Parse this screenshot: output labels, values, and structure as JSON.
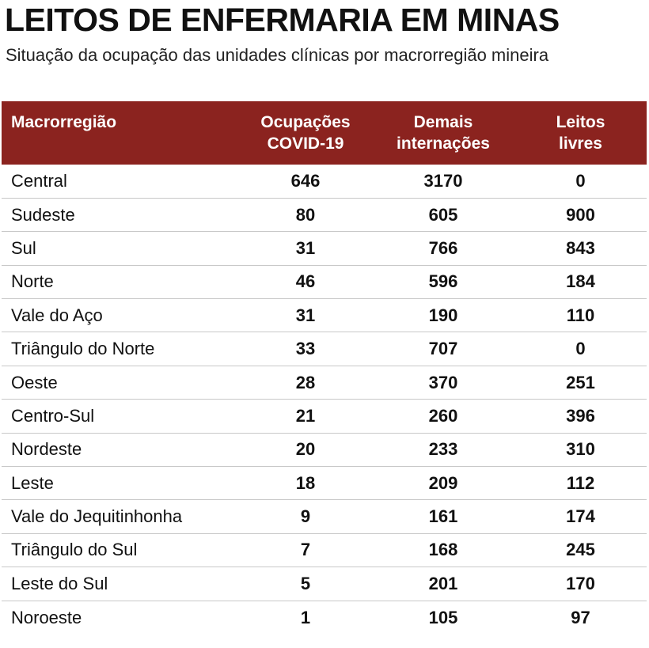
{
  "chart_data": {
    "type": "table",
    "title": "LEITOS DE ENFERMARIA EM MINAS",
    "subtitle": "Situação da ocupação das unidades clínicas por macrorregião mineira",
    "header_color": "#8b231f",
    "columns": [
      {
        "line1": "Macrorregião",
        "line2": ""
      },
      {
        "line1": "Ocupações",
        "line2": "COVID-19"
      },
      {
        "line1": "Demais",
        "line2": "internações"
      },
      {
        "line1": "Leitos",
        "line2": "livres"
      }
    ],
    "rows": [
      {
        "region": "Central",
        "covid": 646,
        "demais": 3170,
        "livres": 0
      },
      {
        "region": "Sudeste",
        "covid": 80,
        "demais": 605,
        "livres": 900
      },
      {
        "region": "Sul",
        "covid": 31,
        "demais": 766,
        "livres": 843
      },
      {
        "region": "Norte",
        "covid": 46,
        "demais": 596,
        "livres": 184
      },
      {
        "region": "Vale do Aço",
        "covid": 31,
        "demais": 190,
        "livres": 110
      },
      {
        "region": "Triângulo do Norte",
        "covid": 33,
        "demais": 707,
        "livres": 0
      },
      {
        "region": "Oeste",
        "covid": 28,
        "demais": 370,
        "livres": 251
      },
      {
        "region": "Centro-Sul",
        "covid": 21,
        "demais": 260,
        "livres": 396
      },
      {
        "region": "Nordeste",
        "covid": 20,
        "demais": 233,
        "livres": 310
      },
      {
        "region": "Leste",
        "covid": 18,
        "demais": 209,
        "livres": 112
      },
      {
        "region": "Vale do Jequitinhonha",
        "covid": 9,
        "demais": 161,
        "livres": 174
      },
      {
        "region": "Triângulo do Sul",
        "covid": 7,
        "demais": 168,
        "livres": 245
      },
      {
        "region": "Leste do Sul",
        "covid": 5,
        "demais": 201,
        "livres": 170
      },
      {
        "region": "Noroeste",
        "covid": 1,
        "demais": 105,
        "livres": 97
      }
    ]
  }
}
